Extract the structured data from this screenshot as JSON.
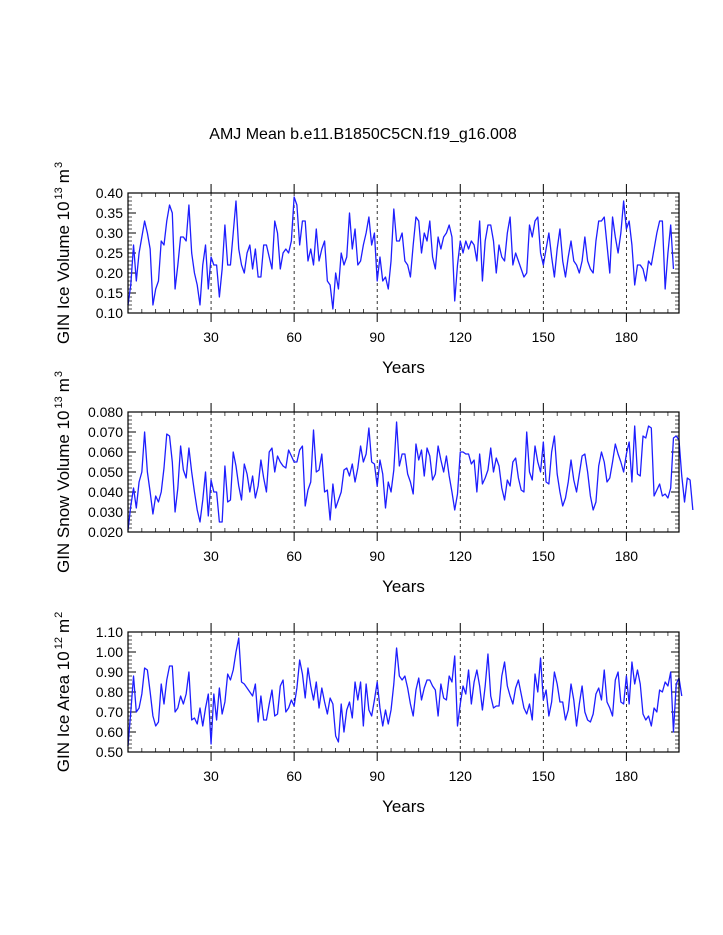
{
  "title": "AMJ Mean b.e11.B1850C5CN.f19_g16.008",
  "colors": {
    "line": "#1e1eff",
    "axis": "#000000",
    "grid": "#000000"
  },
  "chart_data": [
    {
      "type": "line",
      "ylabel_main": "GIN Ice Volume 10",
      "ylabel_exp": "13",
      "ylabel_unit": "m",
      "ylabel_unit_exp": "3",
      "xlabel": "Years",
      "xlim": [
        0,
        199
      ],
      "ylim": [
        0.1,
        0.4
      ],
      "xticks": [
        30,
        60,
        90,
        120,
        150,
        180
      ],
      "xtick_labels": [
        "30",
        "60",
        "90",
        "120",
        "150",
        "180"
      ],
      "yticks": [
        0.1,
        0.15,
        0.2,
        0.25,
        0.3,
        0.35,
        0.4
      ],
      "ytick_labels": [
        "0.10",
        "0.15",
        "0.20",
        "0.25",
        "0.30",
        "0.35",
        "0.40"
      ],
      "yminor": 0.01,
      "grid_x": [
        30,
        60,
        90,
        120,
        150,
        180
      ],
      "values": [
        0.12,
        0.17,
        0.27,
        0.18,
        0.25,
        0.29,
        0.33,
        0.3,
        0.26,
        0.12,
        0.16,
        0.18,
        0.28,
        0.27,
        0.33,
        0.37,
        0.35,
        0.16,
        0.22,
        0.29,
        0.29,
        0.28,
        0.37,
        0.25,
        0.2,
        0.17,
        0.12,
        0.22,
        0.27,
        0.16,
        0.24,
        0.22,
        0.22,
        0.14,
        0.21,
        0.32,
        0.22,
        0.22,
        0.3,
        0.38,
        0.26,
        0.22,
        0.2,
        0.25,
        0.27,
        0.21,
        0.26,
        0.19,
        0.19,
        0.27,
        0.27,
        0.24,
        0.21,
        0.33,
        0.3,
        0.21,
        0.25,
        0.26,
        0.25,
        0.28,
        0.39,
        0.37,
        0.27,
        0.33,
        0.33,
        0.23,
        0.26,
        0.22,
        0.31,
        0.23,
        0.26,
        0.28,
        0.18,
        0.17,
        0.11,
        0.2,
        0.16,
        0.25,
        0.22,
        0.24,
        0.35,
        0.26,
        0.31,
        0.22,
        0.23,
        0.27,
        0.3,
        0.34,
        0.27,
        0.3,
        0.18,
        0.24,
        0.18,
        0.19,
        0.16,
        0.23,
        0.36,
        0.28,
        0.28,
        0.3,
        0.23,
        0.22,
        0.19,
        0.27,
        0.34,
        0.33,
        0.25,
        0.3,
        0.28,
        0.33,
        0.24,
        0.21,
        0.29,
        0.26,
        0.29,
        0.3,
        0.32,
        0.29,
        0.13,
        0.22,
        0.28,
        0.25,
        0.28,
        0.26,
        0.28,
        0.27,
        0.23,
        0.33,
        0.18,
        0.28,
        0.32,
        0.32,
        0.28,
        0.2,
        0.27,
        0.24,
        0.23,
        0.3,
        0.34,
        0.22,
        0.25,
        0.23,
        0.21,
        0.19,
        0.2,
        0.32,
        0.29,
        0.33,
        0.34,
        0.25,
        0.22,
        0.26,
        0.3,
        0.24,
        0.19,
        0.26,
        0.31,
        0.23,
        0.19,
        0.24,
        0.28,
        0.23,
        0.22,
        0.2,
        0.23,
        0.29,
        0.23,
        0.21,
        0.2,
        0.28,
        0.33,
        0.33,
        0.34,
        0.27,
        0.2,
        0.34,
        0.29,
        0.25,
        0.3,
        0.38,
        0.31,
        0.33,
        0.27,
        0.17,
        0.22,
        0.22,
        0.21,
        0.18,
        0.23,
        0.22,
        0.26,
        0.3,
        0.33,
        0.33,
        0.16,
        0.25,
        0.32,
        0.21
      ]
    },
    {
      "type": "line",
      "ylabel_main": "GIN Snow Volume 10",
      "ylabel_exp": "13",
      "ylabel_unit": "m",
      "ylabel_unit_exp": "3",
      "xlabel": "Years",
      "xlim": [
        0,
        199
      ],
      "ylim": [
        0.02,
        0.08
      ],
      "xticks": [
        30,
        60,
        90,
        120,
        150,
        180
      ],
      "xtick_labels": [
        "30",
        "60",
        "90",
        "120",
        "150",
        "180"
      ],
      "yticks": [
        0.02,
        0.03,
        0.04,
        0.05,
        0.06,
        0.07,
        0.08
      ],
      "ytick_labels": [
        "0.020",
        "0.030",
        "0.040",
        "0.050",
        "0.060",
        "0.070",
        "0.080"
      ],
      "yminor": 0.002,
      "grid_x": [
        30,
        60,
        90,
        120,
        150,
        180
      ],
      "values": [
        0.021,
        0.033,
        0.042,
        0.032,
        0.045,
        0.05,
        0.07,
        0.05,
        0.04,
        0.029,
        0.038,
        0.035,
        0.04,
        0.052,
        0.069,
        0.068,
        0.055,
        0.03,
        0.042,
        0.063,
        0.051,
        0.047,
        0.062,
        0.05,
        0.04,
        0.031,
        0.025,
        0.036,
        0.05,
        0.028,
        0.046,
        0.04,
        0.04,
        0.025,
        0.025,
        0.053,
        0.035,
        0.036,
        0.06,
        0.053,
        0.043,
        0.036,
        0.054,
        0.049,
        0.04,
        0.048,
        0.037,
        0.043,
        0.056,
        0.047,
        0.04,
        0.06,
        0.062,
        0.05,
        0.058,
        0.055,
        0.053,
        0.052,
        0.061,
        0.058,
        0.055,
        0.055,
        0.061,
        0.063,
        0.033,
        0.041,
        0.045,
        0.071,
        0.05,
        0.051,
        0.059,
        0.04,
        0.041,
        0.026,
        0.044,
        0.032,
        0.036,
        0.04,
        0.051,
        0.052,
        0.048,
        0.054,
        0.045,
        0.052,
        0.063,
        0.055,
        0.059,
        0.072,
        0.055,
        0.054,
        0.043,
        0.056,
        0.049,
        0.032,
        0.045,
        0.04,
        0.051,
        0.075,
        0.053,
        0.059,
        0.059,
        0.049,
        0.045,
        0.039,
        0.064,
        0.056,
        0.061,
        0.048,
        0.062,
        0.058,
        0.046,
        0.049,
        0.063,
        0.056,
        0.05,
        0.058,
        0.048,
        0.04,
        0.031,
        0.039,
        0.06,
        0.06,
        0.059,
        0.059,
        0.054,
        0.056,
        0.04,
        0.059,
        0.044,
        0.047,
        0.051,
        0.062,
        0.05,
        0.057,
        0.053,
        0.042,
        0.036,
        0.046,
        0.043,
        0.055,
        0.057,
        0.047,
        0.041,
        0.04,
        0.07,
        0.05,
        0.046,
        0.063,
        0.055,
        0.05,
        0.065,
        0.045,
        0.044,
        0.06,
        0.068,
        0.049,
        0.04,
        0.033,
        0.037,
        0.045,
        0.056,
        0.046,
        0.04,
        0.049,
        0.058,
        0.059,
        0.05,
        0.038,
        0.031,
        0.035,
        0.053,
        0.06,
        0.055,
        0.045,
        0.047,
        0.055,
        0.064,
        0.059,
        0.055,
        0.05,
        0.059,
        0.065,
        0.045,
        0.073,
        0.049,
        0.048,
        0.068,
        0.067,
        0.073,
        0.072,
        0.038,
        0.041,
        0.044,
        0.038,
        0.039,
        0.037,
        0.042,
        0.067,
        0.068,
        0.066,
        0.048,
        0.035,
        0.047,
        0.046,
        0.031
      ]
    },
    {
      "type": "line",
      "ylabel_main": "GIN Ice Area 10",
      "ylabel_exp": "12",
      "ylabel_unit": "m",
      "ylabel_unit_exp": "2",
      "xlabel": "Years",
      "xlim": [
        0,
        199
      ],
      "ylim": [
        0.5,
        1.1
      ],
      "xticks": [
        30,
        60,
        90,
        120,
        150,
        180
      ],
      "xtick_labels": [
        "30",
        "60",
        "90",
        "120",
        "150",
        "180"
      ],
      "yticks": [
        0.5,
        0.6,
        0.7,
        0.8,
        0.9,
        1.0,
        1.1
      ],
      "ytick_labels": [
        "0.50",
        "0.60",
        "0.70",
        "0.80",
        "0.90",
        "1.00",
        "1.10"
      ],
      "yminor": 0.02,
      "grid_x": [
        30,
        60,
        90,
        120,
        150,
        180
      ],
      "values": [
        0.53,
        0.7,
        0.88,
        0.7,
        0.72,
        0.79,
        0.92,
        0.91,
        0.8,
        0.68,
        0.63,
        0.65,
        0.84,
        0.74,
        0.86,
        0.93,
        0.93,
        0.7,
        0.72,
        0.78,
        0.74,
        0.79,
        0.9,
        0.66,
        0.67,
        0.64,
        0.72,
        0.63,
        0.72,
        0.79,
        0.54,
        0.79,
        0.66,
        0.82,
        0.69,
        0.75,
        0.89,
        0.86,
        0.91,
        1.0,
        1.07,
        0.85,
        0.84,
        0.82,
        0.8,
        0.78,
        0.84,
        0.65,
        0.78,
        0.66,
        0.66,
        0.74,
        0.81,
        0.68,
        0.69,
        0.83,
        0.86,
        0.7,
        0.72,
        0.76,
        0.73,
        0.82,
        0.96,
        0.89,
        0.77,
        0.92,
        0.83,
        0.76,
        0.85,
        0.72,
        0.82,
        0.75,
        0.69,
        0.77,
        0.74,
        0.58,
        0.55,
        0.74,
        0.6,
        0.71,
        0.75,
        0.67,
        0.85,
        0.76,
        0.85,
        0.63,
        0.84,
        0.71,
        0.68,
        0.76,
        0.85,
        0.72,
        0.63,
        0.71,
        0.64,
        0.71,
        0.84,
        1.02,
        0.88,
        0.86,
        0.88,
        0.82,
        0.74,
        0.68,
        0.81,
        0.87,
        0.76,
        0.82,
        0.86,
        0.86,
        0.83,
        0.81,
        0.68,
        0.84,
        0.77,
        0.76,
        0.88,
        0.85,
        0.98,
        0.63,
        0.74,
        0.83,
        0.79,
        0.91,
        0.74,
        0.85,
        0.91,
        0.83,
        0.71,
        0.83,
        0.99,
        0.78,
        0.72,
        0.73,
        0.73,
        0.88,
        0.95,
        0.83,
        0.78,
        0.74,
        0.82,
        0.86,
        0.79,
        0.72,
        0.69,
        0.74,
        0.66,
        0.89,
        0.8,
        0.97,
        0.76,
        0.81,
        0.68,
        0.75,
        0.9,
        0.84,
        0.75,
        0.75,
        0.66,
        0.71,
        0.84,
        0.76,
        0.63,
        0.74,
        0.83,
        0.7,
        0.66,
        0.65,
        0.69,
        0.79,
        0.82,
        0.76,
        0.91,
        0.75,
        0.72,
        0.68,
        0.86,
        0.9,
        0.75,
        0.74,
        0.88,
        0.74,
        0.95,
        0.84,
        0.91,
        0.84,
        0.69,
        0.66,
        0.68,
        0.63,
        0.72,
        0.7,
        0.81,
        0.8,
        0.85,
        0.83,
        0.9,
        0.6,
        0.84,
        0.87,
        0.78
      ]
    }
  ]
}
